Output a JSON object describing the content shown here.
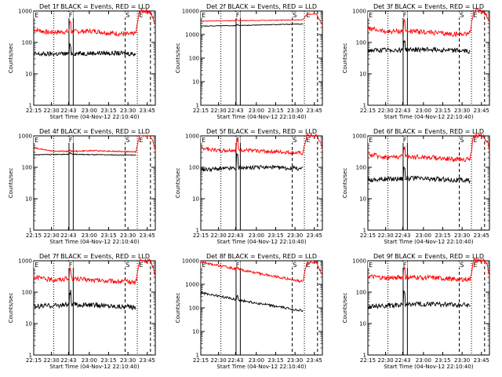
{
  "chart_data": [
    {
      "type": "line",
      "title": "Det 1f BLACK = Events, RED = LLD",
      "xlabel": "Start Time (04-Nov-12 22:10:40)",
      "ylabel": "Counts/sec",
      "yscale": "log",
      "xticks": [
        "22:15",
        "22:30",
        "22:43",
        "23:00",
        "23:15",
        "23:30",
        "23:45"
      ],
      "yticks": [
        "1",
        "10",
        "100",
        "1000"
      ],
      "markers": [
        "E",
        "F",
        "S",
        "E"
      ],
      "series": [
        {
          "color": "#ff0000",
          "levels": [
            {
              "t": 0,
              "v": 260
            },
            {
              "t": 0.12,
              "v": 210
            },
            {
              "t": 0.3,
              "v": 220
            },
            {
              "t": 0.5,
              "v": 230
            },
            {
              "t": 0.62,
              "v": 200
            },
            {
              "t": 0.8,
              "v": 180
            },
            {
              "t": 0.84,
              "v": 200
            },
            {
              "t": 0.87,
              "v": 1000
            },
            {
              "t": 0.95,
              "v": 1000
            },
            {
              "t": 0.98,
              "v": 600
            },
            {
              "t": 1.0,
              "v": 400
            }
          ],
          "noise": 0.15,
          "spike": 2.0
        },
        {
          "color": "#000000",
          "levels": [
            {
              "t": 0,
              "v": 42
            },
            {
              "t": 0.3,
              "v": 44
            },
            {
              "t": 0.55,
              "v": 46
            },
            {
              "t": 0.84,
              "v": 44
            }
          ],
          "noise": 0.15,
          "spike": 1.8
        }
      ]
    },
    {
      "type": "line",
      "title": "Det 2f BLACK = Events, RED = LLD",
      "xlabel": "Start Time (04-Nov-12 22:10:40)",
      "ylabel": "Counts/sec",
      "yscale": "log",
      "xticks": [
        "22:15",
        "22:30",
        "22:43",
        "23:00",
        "23:15",
        "23:30",
        "23:45"
      ],
      "yticks": [
        "1",
        "10",
        "100",
        "1000",
        "10000"
      ],
      "markers": [
        "E",
        "F",
        "S",
        "E"
      ],
      "series": [
        {
          "color": "#ff0000",
          "levels": [
            {
              "t": 0,
              "v": 3700
            },
            {
              "t": 0.3,
              "v": 3900
            },
            {
              "t": 0.55,
              "v": 4000
            },
            {
              "t": 0.84,
              "v": 4200
            },
            {
              "t": 0.87,
              "v": 7000
            },
            {
              "t": 0.95,
              "v": 7500
            },
            {
              "t": 1.0,
              "v": 2500
            }
          ],
          "noise": 0.03,
          "spike": 1.1
        },
        {
          "color": "#000000",
          "levels": [
            {
              "t": 0,
              "v": 2300
            },
            {
              "t": 0.3,
              "v": 2400
            },
            {
              "t": 0.55,
              "v": 2600
            },
            {
              "t": 0.84,
              "v": 2800
            }
          ],
          "noise": 0.03,
          "spike": 1.1
        }
      ]
    },
    {
      "type": "line",
      "title": "Det 3f BLACK = Events, RED = LLD",
      "xlabel": "Start Time (04-Nov-12 22:10:40)",
      "ylabel": "Counts/sec",
      "yscale": "log",
      "xticks": [
        "22:15",
        "22:30",
        "22:43",
        "23:00",
        "23:15",
        "23:30",
        "23:45"
      ],
      "yticks": [
        "1",
        "10",
        "100",
        "1000"
      ],
      "markers": [
        "E",
        "F",
        "S",
        "E"
      ],
      "series": [
        {
          "color": "#ff0000",
          "levels": [
            {
              "t": 0,
              "v": 280
            },
            {
              "t": 0.15,
              "v": 220
            },
            {
              "t": 0.3,
              "v": 230
            },
            {
              "t": 0.5,
              "v": 210
            },
            {
              "t": 0.7,
              "v": 180
            },
            {
              "t": 0.84,
              "v": 200
            },
            {
              "t": 0.87,
              "v": 1000
            },
            {
              "t": 0.95,
              "v": 1000
            },
            {
              "t": 0.98,
              "v": 700
            },
            {
              "t": 1.0,
              "v": 400
            }
          ],
          "noise": 0.15,
          "spike": 2.0
        },
        {
          "color": "#000000",
          "levels": [
            {
              "t": 0,
              "v": 55
            },
            {
              "t": 0.3,
              "v": 58
            },
            {
              "t": 0.55,
              "v": 60
            },
            {
              "t": 0.84,
              "v": 52
            }
          ],
          "noise": 0.15,
          "spike": 2.0
        }
      ]
    },
    {
      "type": "line",
      "title": "Det 4f BLACK = Events, RED = LLD",
      "xlabel": "Start Time (04-Nov-12 22:10:40)",
      "ylabel": "Counts/sec",
      "yscale": "log",
      "xticks": [
        "22:15",
        "22:30",
        "22:43",
        "23:00",
        "23:15",
        "23:30",
        "23:45"
      ],
      "yticks": [
        "1",
        "10",
        "100",
        "1000"
      ],
      "markers": [
        "E",
        "F",
        "S",
        "E"
      ],
      "series": [
        {
          "color": "#ff0000",
          "levels": [
            {
              "t": 0,
              "v": 420
            },
            {
              "t": 0.15,
              "v": 330
            },
            {
              "t": 0.3,
              "v": 320
            },
            {
              "t": 0.5,
              "v": 340
            },
            {
              "t": 0.7,
              "v": 320
            },
            {
              "t": 0.84,
              "v": 310
            },
            {
              "t": 0.87,
              "v": 1000
            },
            {
              "t": 0.95,
              "v": 1000
            },
            {
              "t": 0.98,
              "v": 700
            },
            {
              "t": 1.0,
              "v": 350
            }
          ],
          "noise": 0.04,
          "spike": 1.1
        },
        {
          "color": "#000000",
          "levels": [
            {
              "t": 0,
              "v": 250
            },
            {
              "t": 0.3,
              "v": 260
            },
            {
              "t": 0.55,
              "v": 250
            },
            {
              "t": 0.84,
              "v": 245
            }
          ],
          "noise": 0.03,
          "spike": 1.1
        }
      ]
    },
    {
      "type": "line",
      "title": "Det 5f BLACK = Events, RED = LLD",
      "xlabel": "Start Time (04-Nov-12 22:10:40)",
      "ylabel": "Counts/sec",
      "yscale": "log",
      "xticks": [
        "22:15",
        "22:30",
        "22:43",
        "23:00",
        "23:15",
        "23:30",
        "23:45"
      ],
      "yticks": [
        "1",
        "10",
        "100",
        "1000"
      ],
      "markers": [
        "E",
        "F",
        "S",
        "E"
      ],
      "series": [
        {
          "color": "#ff0000",
          "levels": [
            {
              "t": 0,
              "v": 420
            },
            {
              "t": 0.15,
              "v": 340
            },
            {
              "t": 0.3,
              "v": 360
            },
            {
              "t": 0.5,
              "v": 330
            },
            {
              "t": 0.7,
              "v": 300
            },
            {
              "t": 0.84,
              "v": 280
            },
            {
              "t": 0.87,
              "v": 1000
            },
            {
              "t": 0.95,
              "v": 1000
            },
            {
              "t": 0.98,
              "v": 700
            },
            {
              "t": 1.0,
              "v": 350
            }
          ],
          "noise": 0.12,
          "spike": 2.0
        },
        {
          "color": "#000000",
          "levels": [
            {
              "t": 0,
              "v": 85
            },
            {
              "t": 0.3,
              "v": 95
            },
            {
              "t": 0.55,
              "v": 100
            },
            {
              "t": 0.84,
              "v": 90
            }
          ],
          "noise": 0.13,
          "spike": 2.5
        }
      ]
    },
    {
      "type": "line",
      "title": "Det 6f BLACK = Events, RED = LLD",
      "xlabel": "Start Time (04-Nov-12 22:10:40)",
      "ylabel": "Counts/sec",
      "yscale": "log",
      "xticks": [
        "22:15",
        "22:30",
        "22:43",
        "23:00",
        "23:15",
        "23:30",
        "23:45"
      ],
      "yticks": [
        "1",
        "10",
        "100",
        "1000"
      ],
      "markers": [
        "E",
        "F",
        "S",
        "E"
      ],
      "series": [
        {
          "color": "#ff0000",
          "levels": [
            {
              "t": 0,
              "v": 260
            },
            {
              "t": 0.15,
              "v": 210
            },
            {
              "t": 0.3,
              "v": 220
            },
            {
              "t": 0.5,
              "v": 210
            },
            {
              "t": 0.7,
              "v": 180
            },
            {
              "t": 0.84,
              "v": 180
            },
            {
              "t": 0.87,
              "v": 1000
            },
            {
              "t": 0.95,
              "v": 1000
            },
            {
              "t": 0.98,
              "v": 700
            },
            {
              "t": 1.0,
              "v": 400
            }
          ],
          "noise": 0.15,
          "spike": 2.0
        },
        {
          "color": "#000000",
          "levels": [
            {
              "t": 0,
              "v": 40
            },
            {
              "t": 0.3,
              "v": 45
            },
            {
              "t": 0.55,
              "v": 42
            },
            {
              "t": 0.84,
              "v": 38
            }
          ],
          "noise": 0.16,
          "spike": 2.2
        }
      ]
    },
    {
      "type": "line",
      "title": "Det 7f BLACK = Events, RED = LLD",
      "xlabel": "Start Time (04-Nov-12 22:10:40)",
      "ylabel": "Counts/sec",
      "yscale": "log",
      "xticks": [
        "22:15",
        "22:30",
        "22:43",
        "23:00",
        "23:15",
        "23:30",
        "23:45"
      ],
      "yticks": [
        "1",
        "10",
        "100",
        "1000"
      ],
      "markers": [
        "E",
        "F",
        "S",
        "E"
      ],
      "series": [
        {
          "color": "#ff0000",
          "levels": [
            {
              "t": 0,
              "v": 300
            },
            {
              "t": 0.15,
              "v": 250
            },
            {
              "t": 0.3,
              "v": 270
            },
            {
              "t": 0.5,
              "v": 240
            },
            {
              "t": 0.7,
              "v": 220
            },
            {
              "t": 0.84,
              "v": 210
            },
            {
              "t": 0.87,
              "v": 1000
            },
            {
              "t": 0.95,
              "v": 1000
            },
            {
              "t": 0.98,
              "v": 700
            },
            {
              "t": 1.0,
              "v": 350
            }
          ],
          "noise": 0.15,
          "spike": 2.0
        },
        {
          "color": "#000000",
          "levels": [
            {
              "t": 0,
              "v": 35
            },
            {
              "t": 0.3,
              "v": 40
            },
            {
              "t": 0.55,
              "v": 38
            },
            {
              "t": 0.84,
              "v": 33
            }
          ],
          "noise": 0.16,
          "spike": 2.5
        }
      ]
    },
    {
      "type": "line",
      "title": "Det 8f BLACK = Events, RED = LLD",
      "xlabel": "Start Time (04-Nov-12 22:10:40)",
      "ylabel": "Counts/sec",
      "yscale": "log",
      "xticks": [
        "22:15",
        "22:30",
        "22:43",
        "23:00",
        "23:15",
        "23:30",
        "23:45"
      ],
      "yticks": [
        "1",
        "10",
        "100",
        "1000",
        "10000"
      ],
      "markers": [
        "E",
        "F",
        "S",
        "E"
      ],
      "series": [
        {
          "color": "#ff0000",
          "levels": [
            {
              "t": 0,
              "v": 9000
            },
            {
              "t": 0.2,
              "v": 5500
            },
            {
              "t": 0.4,
              "v": 3500
            },
            {
              "t": 0.6,
              "v": 2200
            },
            {
              "t": 0.84,
              "v": 1300
            },
            {
              "t": 0.87,
              "v": 8000
            },
            {
              "t": 0.95,
              "v": 9000
            },
            {
              "t": 0.98,
              "v": 4000
            },
            {
              "t": 1.0,
              "v": 2500
            }
          ],
          "noise": 0.1,
          "spike": 1.1
        },
        {
          "color": "#000000",
          "levels": [
            {
              "t": 0,
              "v": 450
            },
            {
              "t": 0.2,
              "v": 280
            },
            {
              "t": 0.4,
              "v": 180
            },
            {
              "t": 0.6,
              "v": 120
            },
            {
              "t": 0.84,
              "v": 75
            }
          ],
          "noise": 0.1,
          "spike": 1.4
        }
      ]
    },
    {
      "type": "line",
      "title": "Det 9f BLACK = Events, RED = LLD",
      "xlabel": "Start Time (04-Nov-12 22:10:40)",
      "ylabel": "Counts/sec",
      "yscale": "log",
      "xticks": [
        "22:15",
        "22:30",
        "22:43",
        "23:00",
        "23:15",
        "23:30",
        "23:45"
      ],
      "yticks": [
        "1",
        "10",
        "100",
        "1000"
      ],
      "markers": [
        "E",
        "F",
        "S",
        "E"
      ],
      "series": [
        {
          "color": "#ff0000",
          "levels": [
            {
              "t": 0,
              "v": 320
            },
            {
              "t": 0.15,
              "v": 280
            },
            {
              "t": 0.3,
              "v": 300
            },
            {
              "t": 0.5,
              "v": 290
            },
            {
              "t": 0.7,
              "v": 260
            },
            {
              "t": 0.84,
              "v": 250
            },
            {
              "t": 0.87,
              "v": 1000
            },
            {
              "t": 0.95,
              "v": 1000
            },
            {
              "t": 0.98,
              "v": 700
            },
            {
              "t": 1.0,
              "v": 350
            }
          ],
          "noise": 0.15,
          "spike": 2.0
        },
        {
          "color": "#000000",
          "levels": [
            {
              "t": 0,
              "v": 35
            },
            {
              "t": 0.3,
              "v": 40
            },
            {
              "t": 0.55,
              "v": 42
            },
            {
              "t": 0.84,
              "v": 38
            }
          ],
          "noise": 0.16,
          "spike": 2.5
        }
      ]
    }
  ]
}
